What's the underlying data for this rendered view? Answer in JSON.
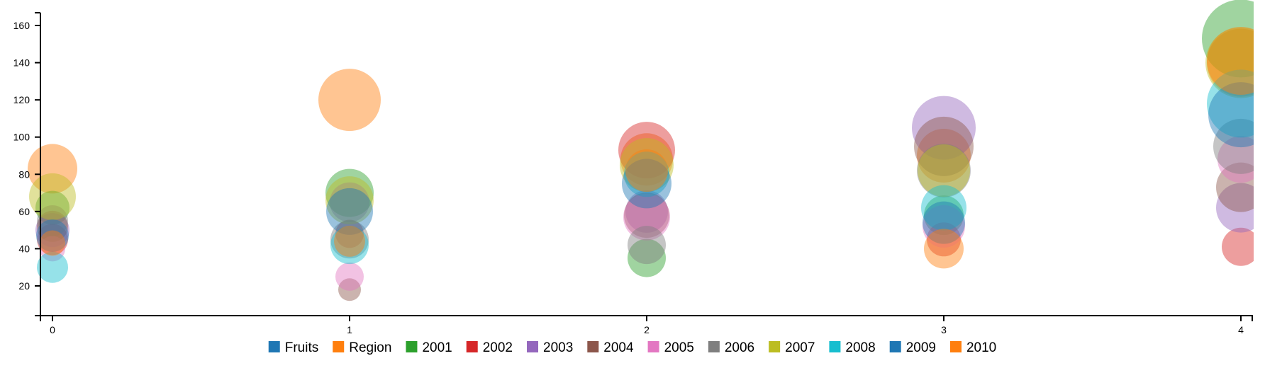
{
  "chart_data": {
    "type": "scatter",
    "subtype": "bubble",
    "xlim": [
      0,
      4
    ],
    "ylim": [
      5,
      165
    ],
    "x_ticks": [
      "0",
      "1",
      "2",
      "3",
      "4"
    ],
    "y_ticks": [
      "20",
      "40",
      "60",
      "80",
      "100",
      "120",
      "140",
      "160"
    ],
    "legend_position": "bottom",
    "legend": [
      {
        "name": "Fruits",
        "color": "#1f77b4"
      },
      {
        "name": "Region",
        "color": "#ff7f0e"
      },
      {
        "name": "2001",
        "color": "#2ca02c"
      },
      {
        "name": "2002",
        "color": "#d62728"
      },
      {
        "name": "2003",
        "color": "#9467bd"
      },
      {
        "name": "2004",
        "color": "#8c564b"
      },
      {
        "name": "2005",
        "color": "#e377c2"
      },
      {
        "name": "2006",
        "color": "#7f7f7f"
      },
      {
        "name": "2007",
        "color": "#bcbd22"
      },
      {
        "name": "2008",
        "color": "#17becf"
      },
      {
        "name": "2009",
        "color": "#1f77b4"
      },
      {
        "name": "2010",
        "color": "#ff7f0e"
      }
    ],
    "series": [
      {
        "name": "Region",
        "color": "#ff7f0e",
        "points": [
          {
            "x": 0,
            "y": 83,
            "r": 35
          },
          {
            "x": 1,
            "y": 120,
            "r": 44
          },
          {
            "x": 2,
            "y": 88,
            "r": 37
          },
          {
            "x": 3,
            "y": 90,
            "r": 38
          },
          {
            "x": 4,
            "y": 140,
            "r": 48
          }
        ]
      },
      {
        "name": "2001",
        "color": "#2ca02c",
        "points": [
          {
            "x": 0,
            "y": 62,
            "r": 24
          },
          {
            "x": 1,
            "y": 70,
            "r": 34
          },
          {
            "x": 2,
            "y": 35,
            "r": 27
          },
          {
            "x": 3,
            "y": 58,
            "r": 28
          },
          {
            "x": 4,
            "y": 153,
            "r": 55
          }
        ]
      },
      {
        "name": "2002",
        "color": "#d62728",
        "points": [
          {
            "x": 0,
            "y": 45,
            "r": 22
          },
          {
            "x": 1,
            "y": 48,
            "r": 20
          },
          {
            "x": 2,
            "y": 93,
            "r": 40
          },
          {
            "x": 3,
            "y": 45,
            "r": 24
          },
          {
            "x": 4,
            "y": 41,
            "r": 27
          }
        ]
      },
      {
        "name": "2003",
        "color": "#9467bd",
        "points": [
          {
            "x": 0,
            "y": 50,
            "r": 24
          },
          {
            "x": 1,
            "y": 65,
            "r": 28
          },
          {
            "x": 2,
            "y": 60,
            "r": 30
          },
          {
            "x": 3,
            "y": 105,
            "r": 45
          },
          {
            "x": 4,
            "y": 62,
            "r": 35
          }
        ]
      },
      {
        "name": "2004",
        "color": "#8c564b",
        "points": [
          {
            "x": 0,
            "y": 52,
            "r": 22
          },
          {
            "x": 1,
            "y": 18,
            "r": 16
          },
          {
            "x": 2,
            "y": 58,
            "r": 32
          },
          {
            "x": 3,
            "y": 95,
            "r": 42
          },
          {
            "x": 4,
            "y": 73,
            "r": 35
          }
        ]
      },
      {
        "name": "2005",
        "color": "#e377c2",
        "points": [
          {
            "x": 0,
            "y": 40,
            "r": 18
          },
          {
            "x": 1,
            "y": 25,
            "r": 20
          },
          {
            "x": 2,
            "y": 57,
            "r": 33
          },
          {
            "x": 3,
            "y": 52,
            "r": 30
          },
          {
            "x": 4,
            "y": 88,
            "r": 33
          }
        ]
      },
      {
        "name": "2006",
        "color": "#7f7f7f",
        "points": [
          {
            "x": 0,
            "y": 55,
            "r": 22
          },
          {
            "x": 1,
            "y": 45,
            "r": 27
          },
          {
            "x": 2,
            "y": 42,
            "r": 27
          },
          {
            "x": 3,
            "y": 82,
            "r": 38
          },
          {
            "x": 4,
            "y": 95,
            "r": 39
          }
        ]
      },
      {
        "name": "2007",
        "color": "#bcbd22",
        "points": [
          {
            "x": 0,
            "y": 68,
            "r": 33
          },
          {
            "x": 1,
            "y": 66,
            "r": 34
          },
          {
            "x": 2,
            "y": 85,
            "r": 38
          },
          {
            "x": 3,
            "y": 82,
            "r": 37
          },
          {
            "x": 4,
            "y": 140,
            "r": 50
          }
        ]
      },
      {
        "name": "2008",
        "color": "#17becf",
        "points": [
          {
            "x": 0,
            "y": 30,
            "r": 22
          },
          {
            "x": 1,
            "y": 42,
            "r": 27
          },
          {
            "x": 2,
            "y": 80,
            "r": 32
          },
          {
            "x": 3,
            "y": 62,
            "r": 32
          },
          {
            "x": 4,
            "y": 118,
            "r": 48
          }
        ]
      },
      {
        "name": "2009",
        "color": "#1f77b4",
        "points": [
          {
            "x": 0,
            "y": 47,
            "r": 23
          },
          {
            "x": 1,
            "y": 60,
            "r": 33
          },
          {
            "x": 2,
            "y": 75,
            "r": 35
          },
          {
            "x": 3,
            "y": 54,
            "r": 30
          },
          {
            "x": 4,
            "y": 112,
            "r": 46
          }
        ]
      },
      {
        "name": "2010",
        "color": "#ff7f0e",
        "points": [
          {
            "x": 0,
            "y": 43,
            "r": 18
          },
          {
            "x": 1,
            "y": 44,
            "r": 22
          },
          {
            "x": 2,
            "y": 82,
            "r": 30
          },
          {
            "x": 3,
            "y": 40,
            "r": 28
          },
          {
            "x": 4,
            "y": 141,
            "r": 48
          }
        ]
      }
    ]
  }
}
